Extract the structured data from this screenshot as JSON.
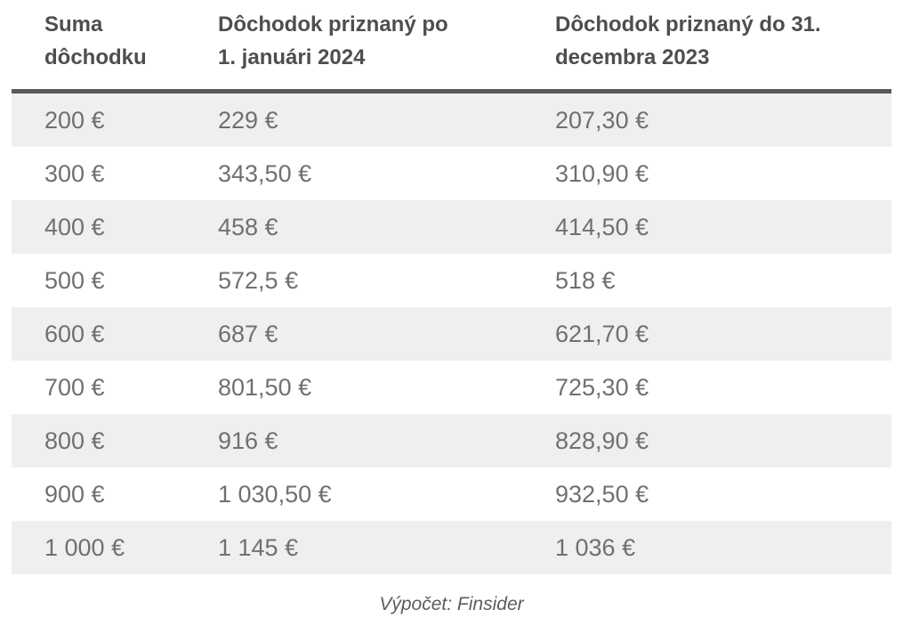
{
  "chart_data": {
    "type": "table",
    "columns": [
      "Suma dôchodku",
      "Dôchodok priznaný po 1. januári 2024",
      "Dôchodok priznaný do 31. decembra 2023"
    ],
    "rows": [
      [
        "200 €",
        "229 €",
        "207,30 €"
      ],
      [
        "300 €",
        "343,50 €",
        "310,90 €"
      ],
      [
        "400 €",
        "458 €",
        "414,50 €"
      ],
      [
        "500 €",
        "572,5 €",
        "518 €"
      ],
      [
        "600 €",
        "687 €",
        "621,70 €"
      ],
      [
        "700 €",
        "801,50 €",
        "725,30 €"
      ],
      [
        "800 €",
        "916 €",
        "828,90 €"
      ],
      [
        "900 €",
        "1 030,50 €",
        "932,50 €"
      ],
      [
        "1 000 €",
        "1 145 €",
        "1 036 €"
      ]
    ],
    "source_note": "Výpočet: Finsider",
    "layout": {
      "striped": true,
      "first_data_row_shaded": true,
      "header_rule": "thick-bottom-border"
    }
  },
  "colors": {
    "background": "#ffffff",
    "row_stripe": "#efefef",
    "header_text": "#4e4e50",
    "body_text": "#6f7072",
    "header_border": "#57585a",
    "source_text": "#5b5c5e"
  }
}
